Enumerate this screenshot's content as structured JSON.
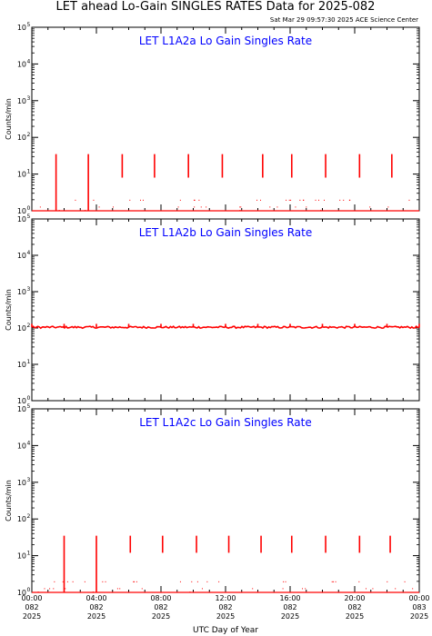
{
  "figure": {
    "title": "LET ahead Lo-Gain SINGLES RATES Data for 2025-082",
    "timestamp": "Sat Mar 29 09:57:30 2025 ACE Science Center",
    "xlabel": "UTC Day of Year"
  },
  "colors": {
    "data": "#ff0000",
    "panel_title": "#0000ff",
    "axes": "#000000",
    "background": "#ffffff"
  },
  "chart_data": [
    {
      "type": "line",
      "title": "LET L1A2a Lo Gain Singles Rate",
      "ylabel": "Counts/min",
      "yscale": "log",
      "ylim": [
        1,
        100000
      ],
      "ytick_exponents": [
        "0",
        "1",
        "2",
        "3",
        "4",
        "5"
      ],
      "baseline": 1,
      "spike_times_h": [
        1.5,
        3.5,
        5.6,
        7.6,
        9.7,
        11.8,
        14.3,
        16.1,
        18.2,
        20.3,
        22.3
      ],
      "spike_values": [
        35,
        35,
        35,
        35,
        35,
        35,
        35,
        35,
        35,
        35,
        35
      ],
      "spike_bottoms": [
        1,
        1,
        8,
        8,
        8,
        8,
        8,
        8,
        8,
        8,
        8
      ],
      "dropout_times_h": [
        1.7,
        3.3,
        12.9,
        17.9
      ]
    },
    {
      "type": "line",
      "title": "LET L1A2b Lo Gain Singles Rate",
      "ylabel": "Counts/min",
      "yscale": "log",
      "ylim": [
        1,
        100000
      ],
      "ytick_exponents": [
        "0",
        "1",
        "2",
        "3",
        "4",
        "5"
      ],
      "baseline": 105,
      "spike_times_h": [
        0,
        2,
        4,
        6,
        8,
        10,
        12,
        14,
        16,
        18,
        20,
        22,
        24
      ],
      "spike_values": [
        130,
        130,
        130,
        130,
        130,
        130,
        130,
        130,
        130,
        130,
        130,
        130,
        130
      ]
    },
    {
      "type": "line",
      "title": "LET L1A2c Lo Gain Singles Rate",
      "ylabel": "Counts/min",
      "yscale": "log",
      "ylim": [
        1,
        100000
      ],
      "ytick_exponents": [
        "0",
        "1",
        "2",
        "3",
        "4",
        "5"
      ],
      "baseline": 1,
      "spike_times_h": [
        2.0,
        4.0,
        6.1,
        8.1,
        10.2,
        12.2,
        14.2,
        16.1,
        18.2,
        20.3,
        22.2
      ],
      "spike_values": [
        35,
        35,
        35,
        35,
        35,
        35,
        35,
        35,
        35,
        35,
        35
      ],
      "spike_bottoms": [
        1,
        1,
        12,
        12,
        12,
        12,
        12,
        12,
        12,
        12,
        12
      ],
      "dropout_times_h": [
        0.4,
        3.8,
        9.8,
        14.0
      ],
      "xticks": [
        {
          "hour": 0,
          "time": "00:00",
          "doy": "082",
          "year": "2025"
        },
        {
          "hour": 4,
          "time": "04:00",
          "doy": "082",
          "year": "2025"
        },
        {
          "hour": 8,
          "time": "08:00",
          "doy": "082",
          "year": "2025"
        },
        {
          "hour": 12,
          "time": "12:00",
          "doy": "082",
          "year": "2025"
        },
        {
          "hour": 16,
          "time": "16:00",
          "doy": "082",
          "year": "2025"
        },
        {
          "hour": 20,
          "time": "20:00",
          "doy": "082",
          "year": "2025"
        },
        {
          "hour": 24,
          "time": "00:00",
          "doy": "083",
          "year": "2025"
        }
      ]
    }
  ]
}
